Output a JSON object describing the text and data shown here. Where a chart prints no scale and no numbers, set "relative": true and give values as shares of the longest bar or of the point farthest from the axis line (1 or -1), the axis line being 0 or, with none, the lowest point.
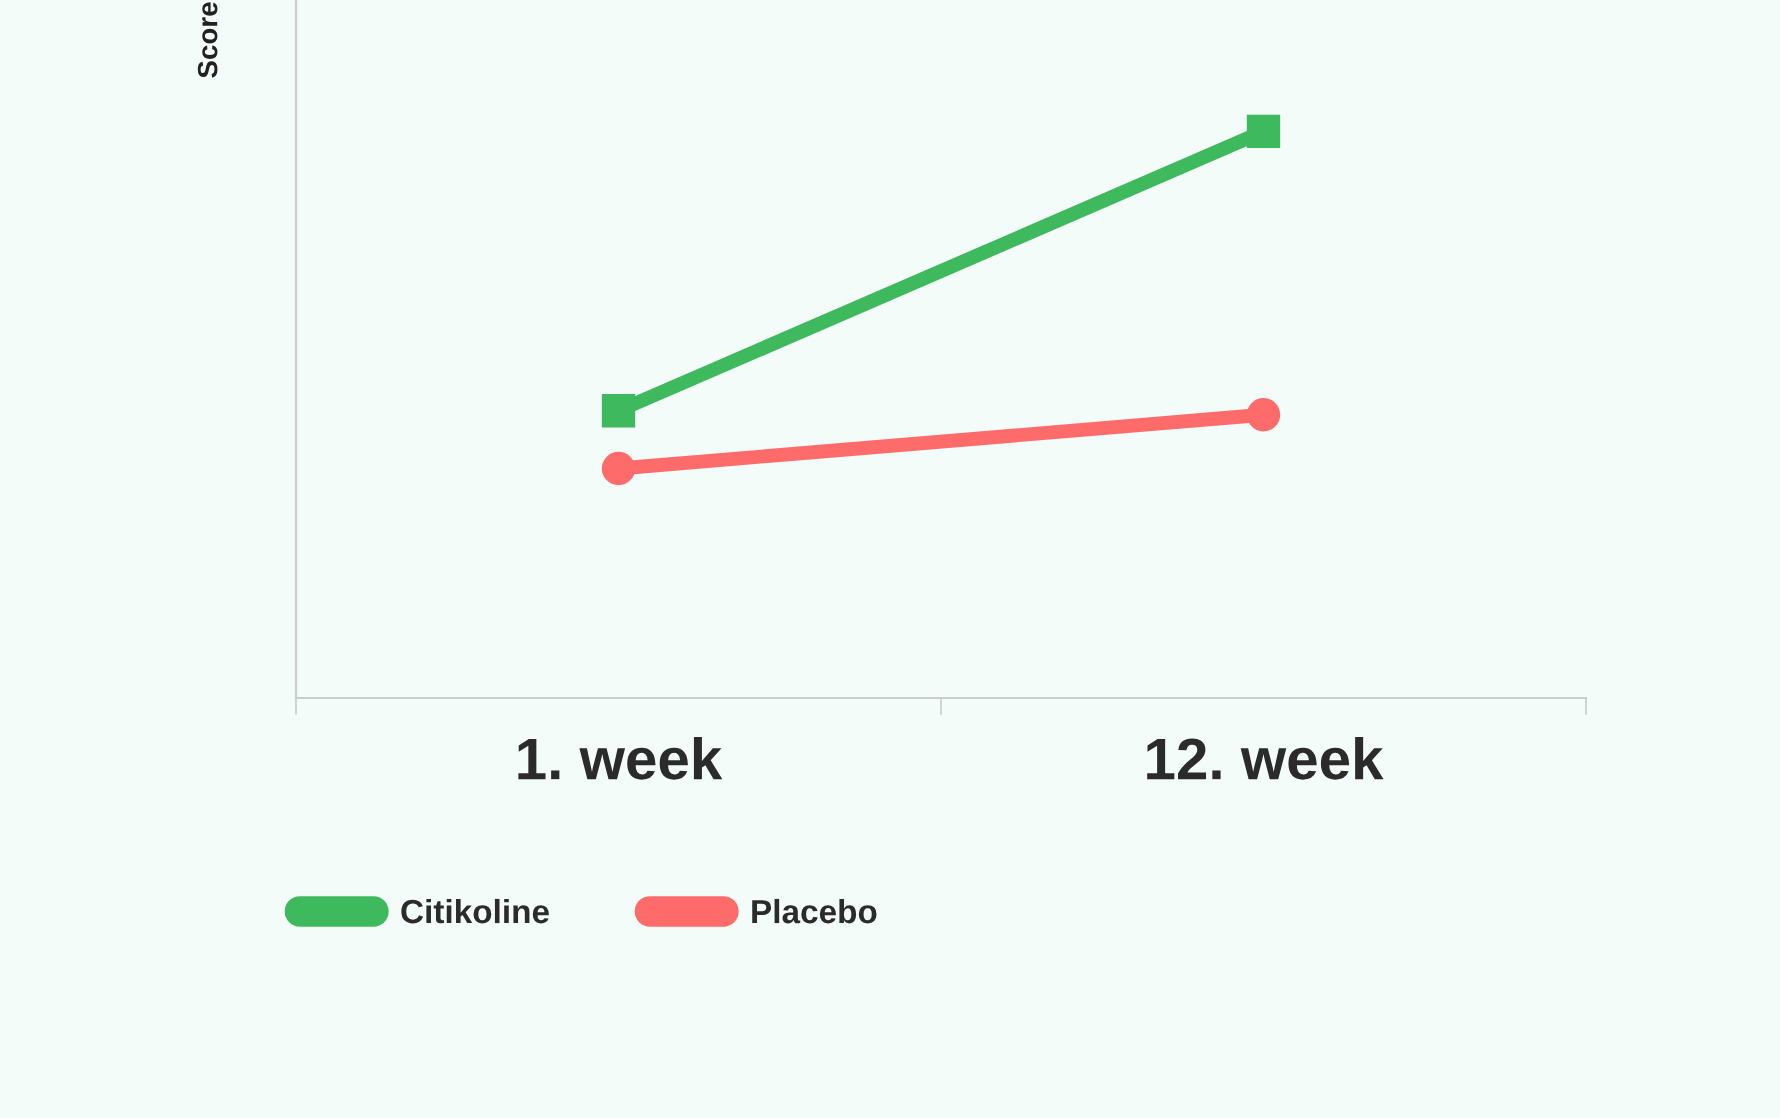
{
  "chart_data": {
    "type": "line",
    "relative": true,
    "ylabel": "Score",
    "categories": [
      "1. week",
      "12. week"
    ],
    "series": [
      {
        "name": "Citikoline",
        "color": "#3fb95e",
        "values": [
          0.507,
          1.0
        ],
        "marker": "square"
      },
      {
        "name": "Placebo",
        "color": "#fd6b6b",
        "values": [
          0.405,
          0.5
        ],
        "marker": "circle"
      }
    ],
    "legend": "bottom",
    "grid": false,
    "line_style": "solid"
  }
}
